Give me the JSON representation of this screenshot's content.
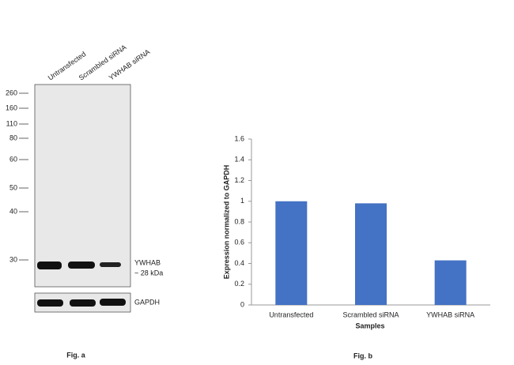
{
  "blot": {
    "lanes": [
      "Untransfected",
      "Scrambled siRNA",
      "YWHAB siRNA"
    ],
    "markers": [
      260,
      160,
      110,
      80,
      60,
      50,
      40,
      30
    ],
    "band_labels": [
      "YWHAB",
      "~ 28 kDa"
    ],
    "loading_label": "GAPDH",
    "caption": "Fig. a"
  },
  "chart_data": {
    "type": "bar",
    "caption": "Fig. b",
    "x_label": "Samples",
    "y_label": "Expression normalized to GAPDH",
    "categories": [
      "Untransfected",
      "Scrambled siRNA",
      "YWHAB siRNA"
    ],
    "values": [
      1.0,
      0.98,
      0.43
    ],
    "color": "#4472c4",
    "ylim": [
      0,
      1.6
    ],
    "yticks": [
      0,
      0.2,
      0.4,
      0.6,
      0.8,
      1,
      1.2,
      1.4,
      1.6
    ],
    "grid": false
  }
}
